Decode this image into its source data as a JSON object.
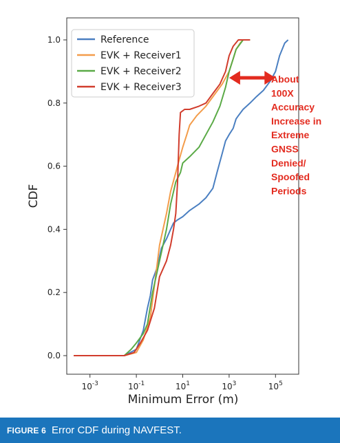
{
  "figure": {
    "label": "FIGURE 6",
    "caption": "Error CDF during NAVFEST.",
    "caption_bar_color": "#1b75bc"
  },
  "chart_data": {
    "type": "line",
    "x_scale": "log",
    "xlabel": "Minimum Error (m)",
    "ylabel": "CDF",
    "xlim": [
      0.0001,
      1000000
    ],
    "ylim": [
      0,
      1.0
    ],
    "x_ticks": [
      {
        "value": 0.001,
        "base": "10",
        "exp": "-3"
      },
      {
        "value": 0.1,
        "base": "10",
        "exp": "-1"
      },
      {
        "value": 10,
        "base": "10",
        "exp": "1"
      },
      {
        "value": 1000,
        "base": "10",
        "exp": "3"
      },
      {
        "value": 100000,
        "base": "10",
        "exp": "5"
      }
    ],
    "y_ticks": [
      {
        "value": 0.0,
        "label": "0.0"
      },
      {
        "value": 0.2,
        "label": "0.2"
      },
      {
        "value": 0.4,
        "label": "0.4"
      },
      {
        "value": 0.6,
        "label": "0.6"
      },
      {
        "value": 0.8,
        "label": "0.8"
      },
      {
        "value": 1.0,
        "label": "1.0"
      }
    ],
    "grid": false,
    "legend_position": "top-left",
    "series": [
      {
        "name": "Reference",
        "color": "#4a7fc1",
        "points": [
          [
            0.0002,
            0.0
          ],
          [
            0.03,
            0.0
          ],
          [
            0.1,
            0.02
          ],
          [
            0.2,
            0.08
          ],
          [
            0.3,
            0.15
          ],
          [
            0.4,
            0.19
          ],
          [
            0.5,
            0.24
          ],
          [
            0.8,
            0.28
          ],
          [
            1.2,
            0.34
          ],
          [
            2,
            0.37
          ],
          [
            3,
            0.4
          ],
          [
            4,
            0.42
          ],
          [
            6,
            0.43
          ],
          [
            10,
            0.44
          ],
          [
            20,
            0.46
          ],
          [
            50,
            0.48
          ],
          [
            100,
            0.5
          ],
          [
            200,
            0.53
          ],
          [
            300,
            0.58
          ],
          [
            500,
            0.64
          ],
          [
            700,
            0.68
          ],
          [
            1000,
            0.7
          ],
          [
            1500,
            0.72
          ],
          [
            2000,
            0.75
          ],
          [
            2500,
            0.76
          ],
          [
            4000,
            0.78
          ],
          [
            8000,
            0.8
          ],
          [
            15000,
            0.82
          ],
          [
            30000,
            0.84
          ],
          [
            60000,
            0.87
          ],
          [
            100000,
            0.9
          ],
          [
            150000,
            0.95
          ],
          [
            250000,
            0.99
          ],
          [
            350000,
            1.0
          ]
        ]
      },
      {
        "name": "EVK + Receiver1",
        "color": "#f39c4a",
        "points": [
          [
            0.0002,
            0.0
          ],
          [
            0.03,
            0.0
          ],
          [
            0.1,
            0.01
          ],
          [
            0.2,
            0.05
          ],
          [
            0.4,
            0.12
          ],
          [
            0.6,
            0.22
          ],
          [
            1,
            0.35
          ],
          [
            2,
            0.45
          ],
          [
            3,
            0.52
          ],
          [
            5,
            0.58
          ],
          [
            7,
            0.62
          ],
          [
            10,
            0.66
          ],
          [
            15,
            0.7
          ],
          [
            20,
            0.73
          ],
          [
            40,
            0.76
          ],
          [
            100,
            0.79
          ],
          [
            200,
            0.82
          ],
          [
            500,
            0.86
          ],
          [
            1000,
            0.9
          ],
          [
            1500,
            0.94
          ],
          [
            2000,
            0.97
          ],
          [
            3000,
            0.99
          ],
          [
            4000,
            1.0
          ],
          [
            8000,
            1.0
          ]
        ]
      },
      {
        "name": "EVK + Receiver2",
        "color": "#5aaa46",
        "points": [
          [
            0.0002,
            0.0
          ],
          [
            0.03,
            0.0
          ],
          [
            0.06,
            0.02
          ],
          [
            0.1,
            0.04
          ],
          [
            0.2,
            0.07
          ],
          [
            0.3,
            0.1
          ],
          [
            0.5,
            0.2
          ],
          [
            1,
            0.3
          ],
          [
            2,
            0.4
          ],
          [
            3,
            0.48
          ],
          [
            5,
            0.55
          ],
          [
            8,
            0.58
          ],
          [
            10,
            0.61
          ],
          [
            20,
            0.63
          ],
          [
            50,
            0.66
          ],
          [
            100,
            0.7
          ],
          [
            200,
            0.74
          ],
          [
            400,
            0.79
          ],
          [
            700,
            0.85
          ],
          [
            1000,
            0.9
          ],
          [
            1500,
            0.94
          ],
          [
            2000,
            0.97
          ],
          [
            4000,
            1.0
          ],
          [
            8000,
            1.0
          ]
        ]
      },
      {
        "name": "EVK + Receiver3",
        "color": "#d13c2c",
        "points": [
          [
            0.0002,
            0.0
          ],
          [
            0.03,
            0.0
          ],
          [
            0.08,
            0.01
          ],
          [
            0.15,
            0.04
          ],
          [
            0.3,
            0.08
          ],
          [
            0.6,
            0.15
          ],
          [
            1,
            0.25
          ],
          [
            2,
            0.3
          ],
          [
            3,
            0.35
          ],
          [
            4,
            0.4
          ],
          [
            5,
            0.45
          ],
          [
            6,
            0.55
          ],
          [
            7,
            0.7
          ],
          [
            8,
            0.77
          ],
          [
            12,
            0.78
          ],
          [
            20,
            0.78
          ],
          [
            50,
            0.79
          ],
          [
            100,
            0.8
          ],
          [
            200,
            0.83
          ],
          [
            400,
            0.86
          ],
          [
            700,
            0.9
          ],
          [
            1000,
            0.95
          ],
          [
            1500,
            0.98
          ],
          [
            2500,
            1.0
          ],
          [
            8000,
            1.0
          ]
        ]
      }
    ],
    "annotation": {
      "lines": [
        "About",
        "100X",
        "Accuracy",
        "Increase in",
        "Extreme",
        "GNSS",
        "Denied/",
        "Spoofed",
        "Periods"
      ],
      "color": "#e32b1f",
      "arrow_from": [
        1000,
        0.88
      ],
      "arrow_to": [
        100000,
        0.88
      ]
    }
  }
}
